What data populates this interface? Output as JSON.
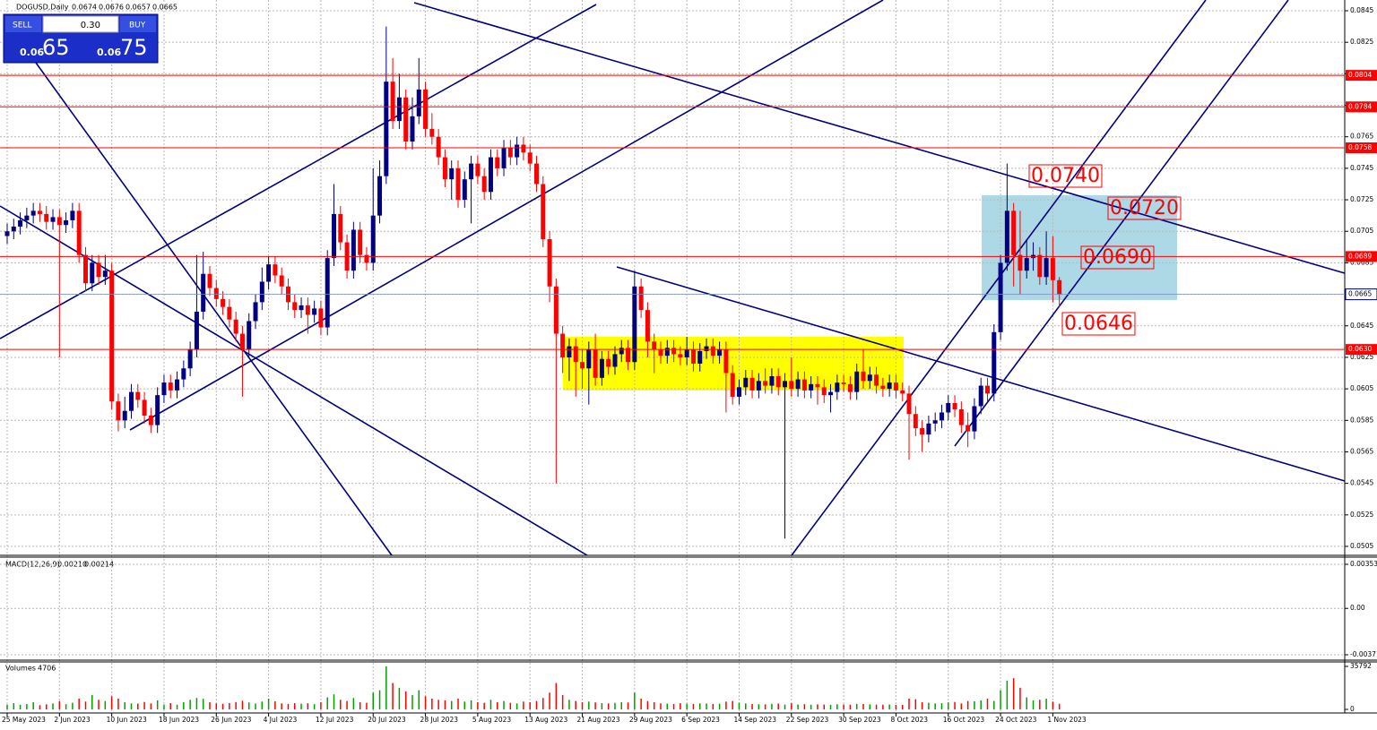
{
  "header": {
    "symbol": "DOGUSD,Daily",
    "ohlc": [
      0.0674,
      0.0676,
      0.0657,
      0.0665
    ]
  },
  "trade_panel": {
    "sell": "SELL",
    "buy": "BUY",
    "lot": "0.30",
    "sell_big": "0.06",
    "sell_pips": "65",
    "buy_big": "0.06",
    "buy_pips": "75"
  },
  "chart_data": [
    {
      "type": "candlestick",
      "up_color": "#000080",
      "down_color": "#ff0000",
      "grid": true,
      "categories": [
        "25 May 2023",
        null,
        null,
        null,
        null,
        null,
        null,
        null,
        "2 Jun 2023",
        null,
        null,
        null,
        null,
        null,
        null,
        null,
        "10 Jun 2023",
        null,
        null,
        null,
        null,
        null,
        null,
        null,
        "18 Jun 2023",
        null,
        null,
        null,
        null,
        null,
        null,
        null,
        "26 Jun 2023",
        null,
        null,
        null,
        null,
        null,
        null,
        null,
        "4 Jul 2023",
        null,
        null,
        null,
        null,
        null,
        null,
        null,
        "12 Jul 2023",
        null,
        null,
        null,
        null,
        null,
        null,
        null,
        "20 Jul 2023",
        null,
        null,
        null,
        null,
        null,
        null,
        null,
        "28 Jul 2023",
        null,
        null,
        null,
        null,
        null,
        null,
        null,
        "5 Aug 2023",
        null,
        null,
        null,
        null,
        null,
        null,
        null,
        "13 Aug 2023",
        null,
        null,
        null,
        null,
        null,
        null,
        null,
        "21 Aug 2023",
        null,
        null,
        null,
        null,
        null,
        null,
        null,
        "29 Aug 2023",
        null,
        null,
        null,
        null,
        null,
        null,
        null,
        "6 Sep 2023",
        null,
        null,
        null,
        null,
        null,
        null,
        null,
        "14 Sep 2023",
        null,
        null,
        null,
        null,
        null,
        null,
        null,
        "22 Sep 2023",
        null,
        null,
        null,
        null,
        null,
        null,
        null,
        "30 Sep 2023",
        null,
        null,
        null,
        null,
        null,
        null,
        null,
        "8 Oct 2023",
        null,
        null,
        null,
        null,
        null,
        null,
        null,
        "16 Oct 2023",
        null,
        null,
        null,
        null,
        null,
        null,
        null,
        "24 Oct 2023",
        null,
        null,
        null,
        null,
        null,
        null,
        null,
        "1 Nov 2023",
        null
      ],
      "open": [
        0.0702,
        0.0705,
        0.0708,
        0.0712,
        0.0715,
        0.0718,
        0.0716,
        0.0711,
        0.0714,
        0.0709,
        0.0712,
        0.0718,
        0.069,
        0.0672,
        0.0685,
        0.0676,
        0.068,
        0.0597,
        0.0585,
        0.0591,
        0.0603,
        0.0598,
        0.0588,
        0.0582,
        0.0601,
        0.0609,
        0.0604,
        0.0611,
        0.0618,
        0.063,
        0.0654,
        0.0678,
        0.0669,
        0.0662,
        0.0657,
        0.0649,
        0.064,
        0.063,
        0.0648,
        0.066,
        0.0673,
        0.0684,
        0.0677,
        0.067,
        0.066,
        0.0655,
        0.0658,
        0.0652,
        0.0656,
        0.0644,
        0.0688,
        0.0716,
        0.0698,
        0.068,
        0.0706,
        0.069,
        0.0685,
        0.0715,
        0.074,
        0.08,
        0.0775,
        0.079,
        0.0762,
        0.0778,
        0.0795,
        0.077,
        0.0765,
        0.0752,
        0.0738,
        0.0745,
        0.0725,
        0.0738,
        0.0748,
        0.074,
        0.073,
        0.0752,
        0.0745,
        0.0758,
        0.0752,
        0.076,
        0.0755,
        0.0748,
        0.0735,
        0.07,
        0.067,
        0.064,
        0.0625,
        0.0632,
        0.0622,
        0.0618,
        0.063,
        0.0612,
        0.0624,
        0.0619,
        0.0627,
        0.0631,
        0.0622,
        0.067,
        0.0655,
        0.0635,
        0.063,
        0.0626,
        0.0631,
        0.0627,
        0.0625,
        0.063,
        0.0621,
        0.0629,
        0.0632,
        0.0626,
        0.063,
        0.0615,
        0.06,
        0.0606,
        0.0612,
        0.0604,
        0.061,
        0.0607,
        0.0613,
        0.0606,
        0.061,
        0.0605,
        0.0611,
        0.0604,
        0.0608,
        0.0606,
        0.0601,
        0.0603,
        0.0609,
        0.0608,
        0.0603,
        0.0616,
        0.061,
        0.0614,
        0.0607,
        0.0605,
        0.0609,
        0.0604,
        0.0602,
        0.0589,
        0.058,
        0.0576,
        0.0583,
        0.0585,
        0.059,
        0.0596,
        0.0592,
        0.0582,
        0.0578,
        0.0594,
        0.0607,
        0.0602,
        0.0641,
        0.0685,
        0.0718,
        0.069,
        0.068,
        0.0688,
        0.069,
        0.0676,
        0.0688,
        0.0674
      ],
      "high": [
        0.071,
        0.0713,
        0.0717,
        0.072,
        0.0723,
        0.0723,
        0.0721,
        0.0719,
        0.0719,
        0.0717,
        0.0723,
        0.0723,
        0.0695,
        0.069,
        0.069,
        0.069,
        0.0685,
        0.0602,
        0.06,
        0.0608,
        0.0608,
        0.0603,
        0.0593,
        0.0606,
        0.0614,
        0.0614,
        0.0616,
        0.0623,
        0.0635,
        0.069,
        0.0692,
        0.0683,
        0.0674,
        0.0667,
        0.0662,
        0.0654,
        0.0645,
        0.0653,
        0.0665,
        0.0682,
        0.0689,
        0.0689,
        0.0682,
        0.0675,
        0.0665,
        0.0663,
        0.0663,
        0.0661,
        0.0661,
        0.0693,
        0.0735,
        0.0721,
        0.0703,
        0.0711,
        0.0711,
        0.0695,
        0.0745,
        0.075,
        0.0835,
        0.0815,
        0.0805,
        0.0795,
        0.079,
        0.0815,
        0.08,
        0.078,
        0.077,
        0.0757,
        0.075,
        0.075,
        0.0743,
        0.0753,
        0.0753,
        0.0745,
        0.0757,
        0.0757,
        0.0763,
        0.0763,
        0.0765,
        0.0765,
        0.076,
        0.0753,
        0.074,
        0.0705,
        0.0675,
        0.0645,
        0.0637,
        0.0637,
        0.063,
        0.0635,
        0.064,
        0.0629,
        0.0629,
        0.0632,
        0.0636,
        0.0636,
        0.068,
        0.0675,
        0.066,
        0.064,
        0.0635,
        0.0636,
        0.0636,
        0.0632,
        0.0638,
        0.0635,
        0.0634,
        0.0637,
        0.0637,
        0.0635,
        0.0635,
        0.062,
        0.0611,
        0.0617,
        0.0617,
        0.0615,
        0.0618,
        0.0618,
        0.0618,
        0.0615,
        0.0625,
        0.0616,
        0.0616,
        0.0613,
        0.0613,
        0.0611,
        0.0608,
        0.0614,
        0.0614,
        0.0613,
        0.0621,
        0.063,
        0.0619,
        0.0619,
        0.0612,
        0.0614,
        0.0614,
        0.0609,
        0.0607,
        0.0594,
        0.0585,
        0.0588,
        0.059,
        0.0595,
        0.0601,
        0.0601,
        0.0597,
        0.059,
        0.0599,
        0.0612,
        0.0612,
        0.0646,
        0.069,
        0.0748,
        0.0723,
        0.0718,
        0.07,
        0.0698,
        0.0695,
        0.0705,
        0.0702,
        0.0676
      ],
      "low": [
        0.0697,
        0.07,
        0.0703,
        0.0707,
        0.071,
        0.0711,
        0.0706,
        0.0706,
        0.0625,
        0.0704,
        0.0707,
        0.0685,
        0.0667,
        0.0667,
        0.0671,
        0.0671,
        0.0592,
        0.0578,
        0.058,
        0.0586,
        0.0593,
        0.0583,
        0.0577,
        0.0577,
        0.0596,
        0.0599,
        0.0599,
        0.0606,
        0.0613,
        0.0625,
        0.0649,
        0.0664,
        0.0657,
        0.0652,
        0.0644,
        0.0635,
        0.06,
        0.0625,
        0.0643,
        0.0655,
        0.0668,
        0.0672,
        0.0665,
        0.0655,
        0.065,
        0.065,
        0.064,
        0.0647,
        0.0639,
        0.0639,
        0.0683,
        0.0693,
        0.0675,
        0.0675,
        0.0685,
        0.068,
        0.068,
        0.071,
        0.0735,
        0.077,
        0.077,
        0.0757,
        0.0757,
        0.0773,
        0.0765,
        0.076,
        0.0747,
        0.0733,
        0.0725,
        0.072,
        0.072,
        0.071,
        0.0735,
        0.0725,
        0.0725,
        0.074,
        0.074,
        0.0747,
        0.0747,
        0.075,
        0.0743,
        0.073,
        0.0695,
        0.066,
        0.0545,
        0.0615,
        0.061,
        0.06,
        0.0605,
        0.0595,
        0.0607,
        0.0607,
        0.0614,
        0.0614,
        0.0622,
        0.0617,
        0.0617,
        0.065,
        0.0625,
        0.0615,
        0.0621,
        0.0621,
        0.0622,
        0.062,
        0.062,
        0.0616,
        0.0616,
        0.0624,
        0.0621,
        0.0621,
        0.059,
        0.0595,
        0.0595,
        0.0601,
        0.0599,
        0.0599,
        0.0602,
        0.0602,
        0.0601,
        0.051,
        0.06,
        0.06,
        0.0599,
        0.0599,
        0.0595,
        0.0596,
        0.059,
        0.0598,
        0.0603,
        0.0598,
        0.0598,
        0.0605,
        0.0605,
        0.0602,
        0.06,
        0.06,
        0.0599,
        0.0597,
        0.056,
        0.0575,
        0.0565,
        0.0571,
        0.0578,
        0.058,
        0.0585,
        0.0587,
        0.0577,
        0.0568,
        0.0573,
        0.0589,
        0.0597,
        0.0597,
        0.0636,
        0.068,
        0.067,
        0.0665,
        0.0675,
        0.068,
        0.0671,
        0.0671,
        0.066,
        0.0657
      ],
      "close": [
        0.0705,
        0.0708,
        0.0712,
        0.0715,
        0.0718,
        0.0716,
        0.0711,
        0.0714,
        0.0709,
        0.0712,
        0.0718,
        0.069,
        0.0672,
        0.0685,
        0.0676,
        0.068,
        0.0597,
        0.0585,
        0.0591,
        0.0603,
        0.0598,
        0.0588,
        0.0582,
        0.0601,
        0.0609,
        0.0604,
        0.0611,
        0.0618,
        0.063,
        0.0654,
        0.0678,
        0.0669,
        0.0662,
        0.0657,
        0.0649,
        0.064,
        0.063,
        0.0648,
        0.066,
        0.0673,
        0.0684,
        0.0677,
        0.067,
        0.066,
        0.0655,
        0.0658,
        0.0652,
        0.0656,
        0.0644,
        0.0688,
        0.0716,
        0.0698,
        0.068,
        0.0706,
        0.069,
        0.0685,
        0.0715,
        0.074,
        0.08,
        0.0775,
        0.079,
        0.0762,
        0.0778,
        0.0795,
        0.077,
        0.0765,
        0.0752,
        0.0738,
        0.0745,
        0.0725,
        0.0738,
        0.0748,
        0.074,
        0.073,
        0.0752,
        0.0745,
        0.0758,
        0.0752,
        0.076,
        0.0755,
        0.0748,
        0.0735,
        0.07,
        0.067,
        0.064,
        0.0625,
        0.0632,
        0.0622,
        0.0618,
        0.063,
        0.0612,
        0.0624,
        0.0619,
        0.0627,
        0.0631,
        0.0622,
        0.067,
        0.0655,
        0.0635,
        0.063,
        0.0626,
        0.0631,
        0.0627,
        0.0625,
        0.063,
        0.0621,
        0.0629,
        0.0632,
        0.0626,
        0.063,
        0.0615,
        0.06,
        0.0606,
        0.0612,
        0.0604,
        0.061,
        0.0607,
        0.0613,
        0.0606,
        0.061,
        0.0605,
        0.0611,
        0.0604,
        0.0608,
        0.0606,
        0.0601,
        0.0603,
        0.0609,
        0.0608,
        0.0603,
        0.0616,
        0.061,
        0.0614,
        0.0607,
        0.0605,
        0.0609,
        0.0604,
        0.0602,
        0.0589,
        0.058,
        0.0576,
        0.0583,
        0.0585,
        0.059,
        0.0596,
        0.0592,
        0.0582,
        0.0578,
        0.0594,
        0.0607,
        0.0602,
        0.0641,
        0.0685,
        0.0718,
        0.069,
        0.068,
        0.0688,
        0.069,
        0.0676,
        0.0688,
        0.0674,
        0.0665
      ],
      "ylim": [
        0.0505,
        0.0845
      ],
      "yticks": [
        0.0845,
        0.0825,
        0.0805,
        0.0785,
        0.0765,
        0.0745,
        0.0725,
        0.0705,
        0.0685,
        0.0665,
        0.0645,
        0.0625,
        0.0605,
        0.0585,
        0.0565,
        0.0545,
        0.0525,
        0.0505
      ],
      "hlines": [
        0.0804,
        0.0784,
        0.0758,
        0.0689,
        {
          "value": 0.063,
          "label": "0.0630"
        }
      ],
      "hline_color": "#ff0000",
      "last_price": 0.0665,
      "annotations": [
        "0.0740",
        "0.0720",
        "0.0690",
        "0.0646"
      ]
    },
    {
      "type": "macd",
      "title": "MACD(12,26,9)",
      "readings": [
        "0.00210",
        "0.00214"
      ],
      "ylim": [
        -0.00371,
        0.00353
      ],
      "yticks": [
        0.00353,
        {
          "value": 0,
          "label": "0.00"
        },
        -0.00371
      ]
    },
    {
      "type": "bar",
      "title": "Volumes",
      "up_color": "#00a000",
      "down_color": "#ff0000",
      "values": [
        4000,
        5200,
        3800,
        4500,
        6000,
        3500,
        4200,
        5000,
        7000,
        4300,
        5500,
        9000,
        6500,
        12000,
        8000,
        7000,
        11000,
        9000,
        6000,
        5000,
        4800,
        6200,
        5000,
        7500,
        4000,
        5200,
        3900,
        6000,
        8000,
        9500,
        8800,
        6000,
        5000,
        4700,
        5300,
        6100,
        7200,
        5800,
        4900,
        6500,
        9000,
        6800,
        5000,
        4500,
        5200,
        4800,
        5100,
        4400,
        6000,
        10000,
        12500,
        8000,
        7000,
        9500,
        6000,
        5500,
        14000,
        16000,
        35792,
        22000,
        18000,
        15000,
        12000,
        16000,
        11000,
        9000,
        8000,
        7500,
        7000,
        9000,
        6500,
        7500,
        6000,
        5500,
        8000,
        6000,
        7000,
        5500,
        5000,
        6500,
        6000,
        7000,
        9500,
        14000,
        22000,
        12000,
        8000,
        7000,
        6000,
        6500,
        5800,
        5200,
        5000,
        5500,
        6000,
        5800,
        14000,
        9000,
        7000,
        6000,
        5000,
        4800,
        4500,
        5200,
        4700,
        4600,
        5000,
        4900,
        4500,
        4700,
        6500,
        7000,
        5500,
        5000,
        4500,
        4300,
        4200,
        4600,
        4800,
        4000,
        5200,
        4100,
        4400,
        3900,
        4200,
        4000,
        3800,
        4300,
        4100,
        3900,
        4600,
        4500,
        4200,
        4000,
        3900,
        4100,
        3800,
        3700,
        9000,
        8500,
        6000,
        5500,
        5000,
        5200,
        5800,
        6200,
        5000,
        7000,
        6800,
        7500,
        9000,
        7000,
        16000,
        24000,
        26000,
        18000,
        10000,
        7500,
        8000,
        9000,
        6500,
        4706
      ],
      "ylim": [
        0,
        35792
      ],
      "yticks": [
        35792,
        0
      ]
    }
  ]
}
